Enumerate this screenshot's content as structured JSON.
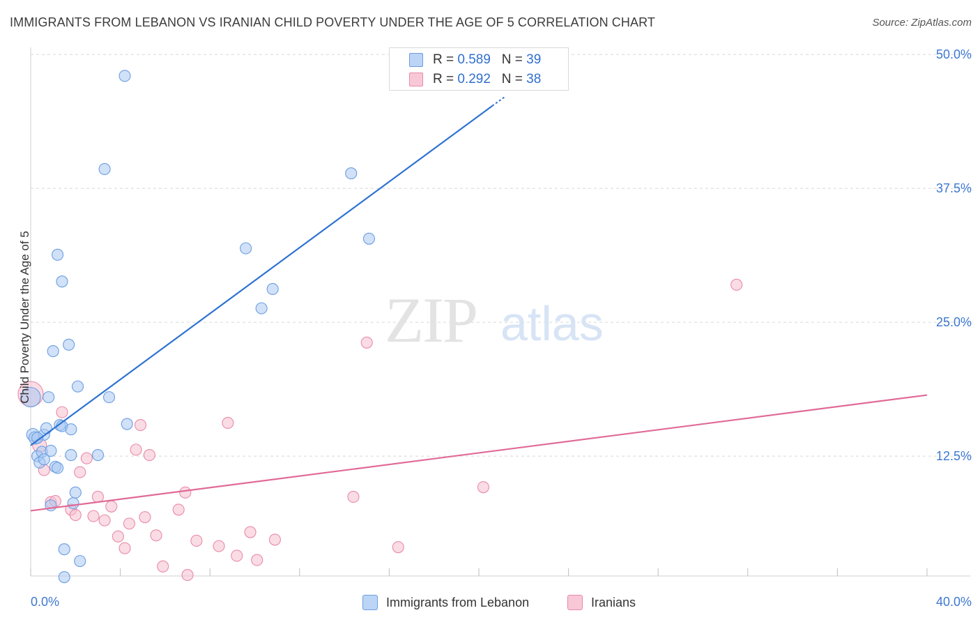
{
  "title": "IMMIGRANTS FROM LEBANON VS IRANIAN CHILD POVERTY UNDER THE AGE OF 5 CORRELATION CHART",
  "source": "Source: ZipAtlas.com",
  "watermark": {
    "zip": "ZIP",
    "atlas": "atlas"
  },
  "legend_top": [
    {
      "r_label": "R =",
      "r_value": "0.589",
      "n_label": "N =",
      "n_value": "39"
    },
    {
      "r_label": "R =",
      "r_value": "0.292",
      "n_label": "N =",
      "n_value": "38"
    }
  ],
  "legend_bottom": [
    "Immigrants from Lebanon",
    "Iranians"
  ],
  "colors": {
    "blue_fill": "#a9c8f2",
    "blue_stroke": "#6b9ee0",
    "blue_line": "#2e73d1",
    "pink_fill": "#f6bfd0",
    "pink_stroke": "#e98aa9",
    "pink_line": "#e06a97",
    "tick_text": "#3d78d0",
    "grid": "#d8d8d8"
  },
  "chart_data": {
    "type": "scatter",
    "title": "IMMIGRANTS FROM LEBANON VS IRANIAN CHILD POVERTY UNDER THE AGE OF 5 CORRELATION CHART",
    "xlabel": "",
    "ylabel": "Child Poverty Under the Age of 5",
    "xlim": [
      0,
      40
    ],
    "ylim": [
      0,
      52
    ],
    "x_tick_labels": [
      {
        "value": 0,
        "label": "0.0%"
      },
      {
        "value": 40,
        "label": "40.0%"
      }
    ],
    "y_tick_labels": [
      {
        "value": 12.5,
        "label": "12.5%"
      },
      {
        "value": 25,
        "label": "25.0%"
      },
      {
        "value": 37.5,
        "label": "37.5%"
      },
      {
        "value": 50,
        "label": "50.0%"
      }
    ],
    "x_minor_ticks": [
      0,
      4,
      8,
      12,
      16,
      20,
      24,
      28,
      32,
      36,
      40
    ],
    "grid": true,
    "series": [
      {
        "name": "Immigrants from Lebanon",
        "color": "blue",
        "r": 0.589,
        "n": 39,
        "trend": {
          "x": [
            0,
            20.6
          ],
          "y": [
            13.5,
            45.2
          ]
        },
        "trend_dashed": {
          "x": [
            20.6,
            21.2
          ],
          "y": [
            45.2,
            46.1
          ]
        },
        "points": [
          [
            0.0,
            18.0,
            14
          ],
          [
            0.1,
            14.5,
            9
          ],
          [
            0.2,
            14.2,
            9
          ],
          [
            0.3,
            12.5,
            8
          ],
          [
            0.4,
            11.9,
            8
          ],
          [
            0.5,
            12.9,
            8
          ],
          [
            0.6,
            14.5,
            8
          ],
          [
            0.6,
            12.2,
            8
          ],
          [
            0.7,
            15.1,
            8
          ],
          [
            0.8,
            18.0,
            8
          ],
          [
            0.9,
            13.0,
            8
          ],
          [
            0.9,
            7.9,
            8
          ],
          [
            1.0,
            22.3,
            8
          ],
          [
            1.1,
            11.5,
            8
          ],
          [
            1.2,
            11.4,
            8
          ],
          [
            1.2,
            31.3,
            8
          ],
          [
            1.3,
            15.4,
            8
          ],
          [
            1.4,
            15.3,
            8
          ],
          [
            1.4,
            28.8,
            8
          ],
          [
            1.5,
            3.8,
            8
          ],
          [
            1.5,
            1.2,
            8
          ],
          [
            1.7,
            22.9,
            8
          ],
          [
            1.8,
            15.0,
            8
          ],
          [
            1.8,
            12.6,
            8
          ],
          [
            1.9,
            8.1,
            8
          ],
          [
            2.0,
            9.1,
            8
          ],
          [
            2.1,
            19.0,
            8
          ],
          [
            2.2,
            2.7,
            8
          ],
          [
            3.0,
            12.6,
            8
          ],
          [
            3.3,
            39.3,
            8
          ],
          [
            3.5,
            18.0,
            8
          ],
          [
            4.2,
            48.0,
            8
          ],
          [
            4.3,
            15.5,
            8
          ],
          [
            9.6,
            31.9,
            8
          ],
          [
            10.3,
            26.3,
            8
          ],
          [
            10.8,
            28.1,
            8
          ],
          [
            14.3,
            38.9,
            8
          ],
          [
            15.1,
            32.8,
            8
          ],
          [
            0.3,
            14.2,
            8
          ]
        ]
      },
      {
        "name": "Iranians",
        "color": "pink",
        "r": 0.292,
        "n": 38,
        "trend": {
          "x": [
            0,
            40
          ],
          "y": [
            7.4,
            18.2
          ]
        },
        "points": [
          [
            0.0,
            18.3,
            18
          ],
          [
            0.4,
            13.5,
            10
          ],
          [
            0.6,
            11.2,
            8
          ],
          [
            0.9,
            8.2,
            8
          ],
          [
            1.1,
            8.3,
            8
          ],
          [
            1.4,
            16.6,
            8
          ],
          [
            1.8,
            7.5,
            8
          ],
          [
            2.0,
            7.0,
            8
          ],
          [
            2.2,
            11.0,
            8
          ],
          [
            2.5,
            12.3,
            8
          ],
          [
            2.8,
            6.9,
            8
          ],
          [
            3.0,
            8.7,
            8
          ],
          [
            3.3,
            6.5,
            8
          ],
          [
            3.6,
            7.8,
            8
          ],
          [
            3.9,
            5.0,
            8
          ],
          [
            4.2,
            3.9,
            8
          ],
          [
            4.4,
            6.2,
            8
          ],
          [
            4.7,
            13.1,
            8
          ],
          [
            4.9,
            15.4,
            8
          ],
          [
            5.1,
            6.8,
            8
          ],
          [
            5.3,
            12.6,
            8
          ],
          [
            5.6,
            5.1,
            8
          ],
          [
            5.9,
            2.2,
            8
          ],
          [
            6.6,
            7.5,
            8
          ],
          [
            6.9,
            9.1,
            8
          ],
          [
            7.0,
            1.4,
            8
          ],
          [
            7.4,
            4.6,
            8
          ],
          [
            8.4,
            4.1,
            8
          ],
          [
            8.8,
            15.6,
            8
          ],
          [
            9.2,
            3.2,
            8
          ],
          [
            9.8,
            5.4,
            8
          ],
          [
            10.1,
            2.8,
            8
          ],
          [
            10.9,
            4.7,
            8
          ],
          [
            14.4,
            8.7,
            8
          ],
          [
            15.0,
            23.1,
            8
          ],
          [
            16.4,
            4.0,
            8
          ],
          [
            20.2,
            9.6,
            8
          ],
          [
            31.5,
            28.5,
            8
          ]
        ]
      }
    ]
  }
}
